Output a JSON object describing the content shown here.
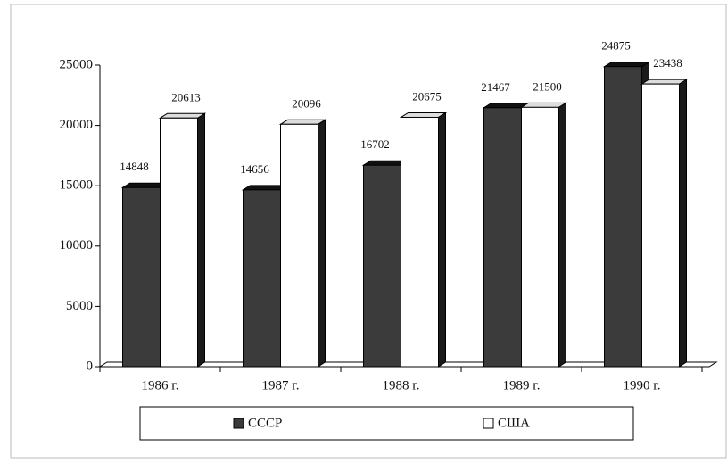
{
  "chart_data": {
    "type": "bar3d",
    "categories": [
      "1986 г.",
      "1987 г.",
      "1988 г.",
      "1989 г.",
      "1990 г."
    ],
    "series": [
      {
        "name": "СССР",
        "color": "#3b3b3b",
        "values": [
          14848,
          14656,
          16702,
          21467,
          24875
        ]
      },
      {
        "name": "США",
        "color": "#ffffff",
        "values": [
          20613,
          20096,
          20675,
          21500,
          23438
        ]
      }
    ],
    "ylim": [
      0,
      25000
    ],
    "yticks": [
      0,
      5000,
      10000,
      15000,
      20000,
      25000
    ],
    "legend": "bottom"
  }
}
